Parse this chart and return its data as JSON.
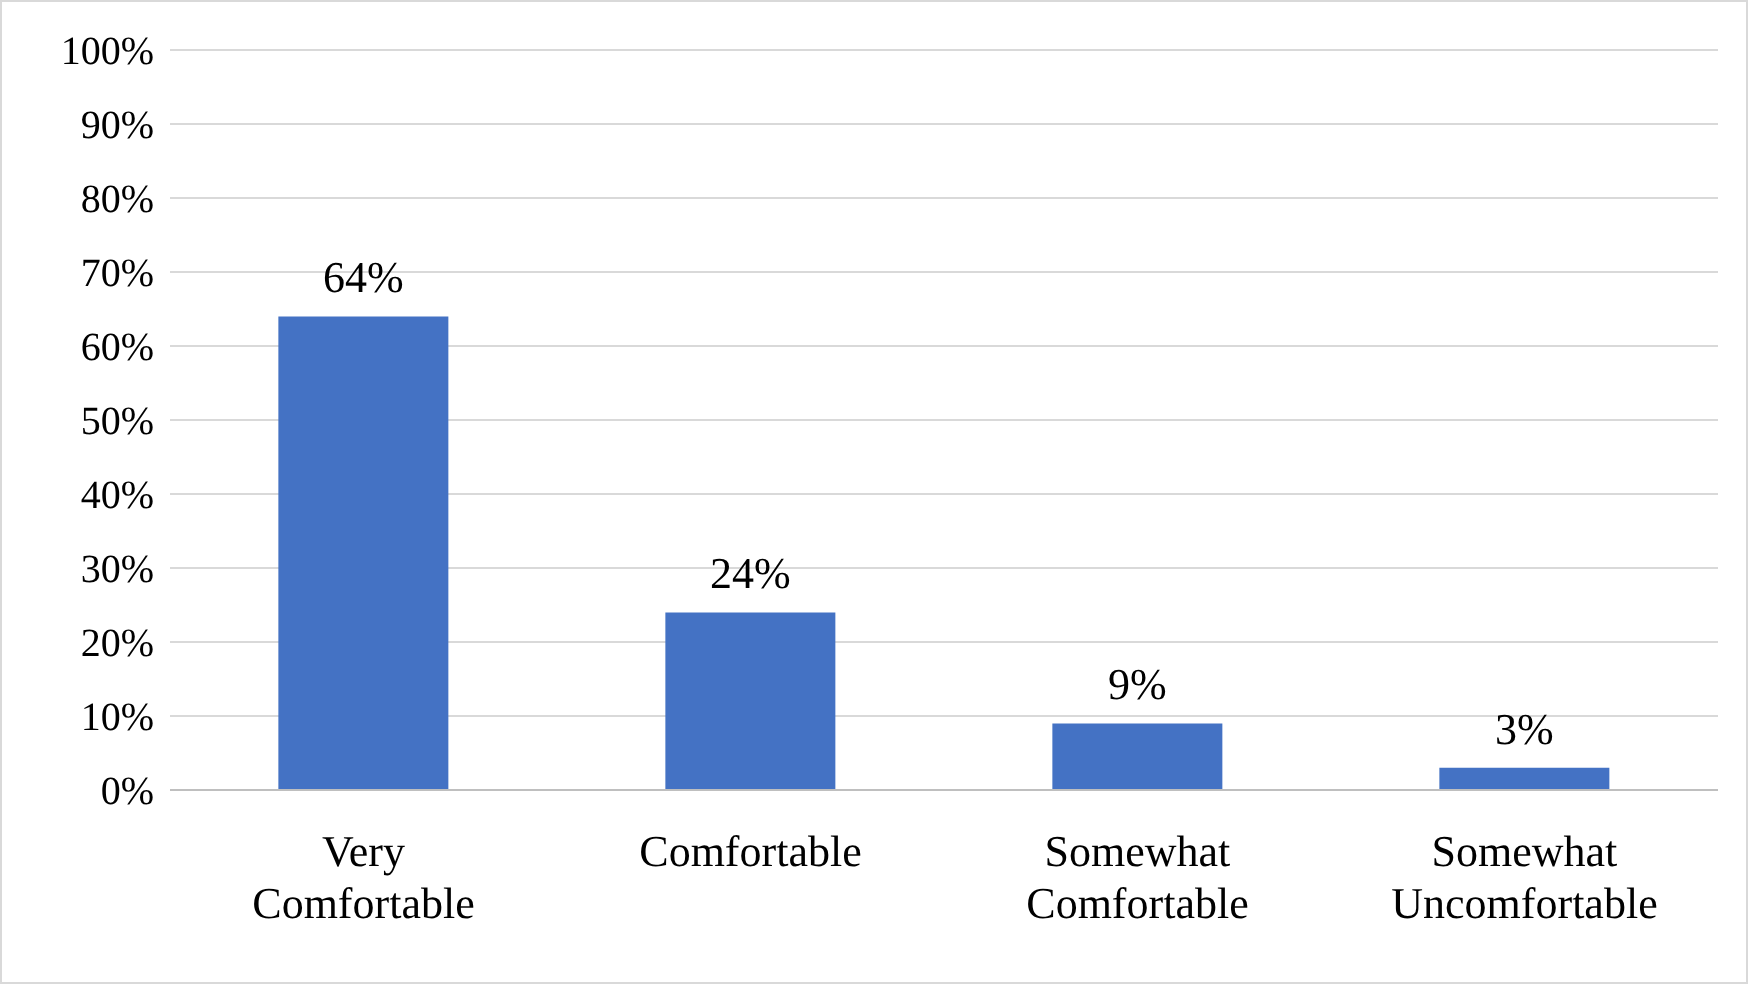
{
  "chart_data": {
    "type": "bar",
    "categories": [
      "Very Comfortable",
      "Comfortable",
      "Somewhat Comfortable",
      "Somewhat Uncomfortable"
    ],
    "values": [
      64,
      24,
      9,
      3
    ],
    "color": "#4472c4",
    "value_labels": [
      "64%",
      "24%",
      "9%",
      "3%"
    ],
    "ylim": [
      0,
      100
    ],
    "yticks": [
      {
        "value": 0,
        "label": "0%"
      },
      {
        "value": 10,
        "label": "10%"
      },
      {
        "value": 20,
        "label": "20%"
      },
      {
        "value": 30,
        "label": "30%"
      },
      {
        "value": 40,
        "label": "40%"
      },
      {
        "value": 50,
        "label": "50%"
      },
      {
        "value": 60,
        "label": "60%"
      },
      {
        "value": 70,
        "label": "70%"
      },
      {
        "value": 80,
        "label": "80%"
      },
      {
        "value": 90,
        "label": "90%"
      },
      {
        "value": 100,
        "label": "100%"
      }
    ],
    "grid": "y",
    "legend": false
  }
}
